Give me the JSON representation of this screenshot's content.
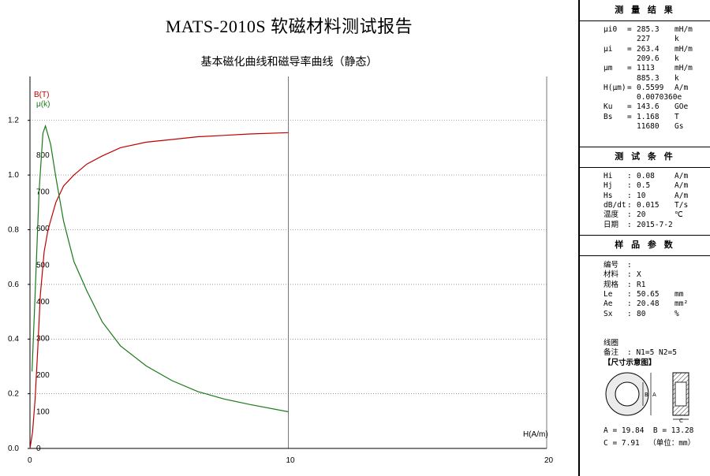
{
  "report": {
    "title": "MATS-2010S 软磁材料测试报告",
    "subtitle": "基本磁化曲线和磁导率曲线（静态）"
  },
  "chart_data": {
    "type": "line",
    "x_axis": {
      "label": "H(A/m)",
      "range": [
        0,
        20
      ],
      "ticks": [
        "0",
        "10",
        "20"
      ]
    },
    "y_axis_left": {
      "label": "B(T)",
      "range": [
        0,
        1.3
      ],
      "ticks": [
        "0.0",
        "0.2",
        "0.4",
        "0.6",
        "0.8",
        "1.0",
        "1.2"
      ]
    },
    "y_axis_right": {
      "label": "μ(k)",
      "range": [
        0,
        970
      ],
      "ticks": [
        "0",
        "100",
        "200",
        "300",
        "400",
        "500",
        "600",
        "700",
        "800"
      ]
    },
    "grid": true,
    "series": [
      {
        "name": "B(T)",
        "color": "#c00000",
        "axis": "left",
        "x": [
          0,
          0.1,
          0.2,
          0.3,
          0.4,
          0.55,
          0.7,
          1.0,
          1.3,
          1.7,
          2.2,
          2.8,
          3.5,
          4.5,
          5.5,
          6.5,
          7.5,
          8.5,
          10
        ],
        "y": [
          0.0,
          0.06,
          0.18,
          0.36,
          0.56,
          0.72,
          0.8,
          0.9,
          0.96,
          1.0,
          1.04,
          1.07,
          1.1,
          1.12,
          1.13,
          1.14,
          1.145,
          1.15,
          1.155
        ]
      },
      {
        "name": "μ(k)",
        "color": "#1a7a1a",
        "axis": "right",
        "x": [
          0.08,
          0.2,
          0.35,
          0.5,
          0.6,
          0.8,
          1.0,
          1.3,
          1.7,
          2.2,
          2.8,
          3.5,
          4.5,
          5.5,
          6.5,
          7.5,
          8.5,
          10
        ],
        "y": [
          210,
          420,
          700,
          860,
          880,
          830,
          740,
          620,
          510,
          430,
          345,
          280,
          225,
          185,
          155,
          135,
          120,
          100
        ]
      }
    ]
  },
  "panel": {
    "results": {
      "header": "测 量 结 果",
      "rows": [
        {
          "name": "μi0",
          "eq": "=",
          "value": "285.3",
          "unit": "mH/m"
        },
        {
          "name": "",
          "eq": "",
          "value": "227",
          "unit": "k"
        },
        {
          "name": "μi",
          "eq": "=",
          "value": "263.4",
          "unit": "mH/m"
        },
        {
          "name": "",
          "eq": "",
          "value": "209.6",
          "unit": "k"
        },
        {
          "name": "μm",
          "eq": "=",
          "value": "1113",
          "unit": "mH/m"
        },
        {
          "name": "",
          "eq": "",
          "value": "885.3",
          "unit": "k"
        },
        {
          "name": "H(μm)",
          "eq": "=",
          "value": "0.5599",
          "unit": "A/m"
        },
        {
          "name": "",
          "eq": "",
          "value": "0.0070360e",
          "unit": ""
        },
        {
          "name": "Ku",
          "eq": "=",
          "value": "143.6",
          "unit": "GOe"
        },
        {
          "name": "Bs",
          "eq": "=",
          "value": "1.168",
          "unit": "T"
        },
        {
          "name": "",
          "eq": "",
          "value": "11680",
          "unit": "Gs"
        }
      ]
    },
    "conditions": {
      "header": "测 试 条 件",
      "rows": [
        {
          "name": "Hi",
          "eq": ":",
          "value": "0.08",
          "unit": "A/m"
        },
        {
          "name": "Hj",
          "eq": ":",
          "value": "0.5",
          "unit": "A/m"
        },
        {
          "name": "Hs",
          "eq": ":",
          "value": "10",
          "unit": "A/m"
        },
        {
          "name": "dB/dt",
          "eq": ":",
          "value": "0.015",
          "unit": "T/s"
        },
        {
          "name": "温度",
          "eq": ":",
          "value": "20",
          "unit": "℃"
        },
        {
          "name": "日期",
          "eq": ":",
          "value": "2015-7-2",
          "unit": ""
        }
      ]
    },
    "sample": {
      "header": "样 品 参 数",
      "rows": [
        {
          "name": "编号",
          "eq": ":",
          "value": "",
          "unit": ""
        },
        {
          "name": "材料",
          "eq": ":",
          "value": "X",
          "unit": ""
        },
        {
          "name": "规格",
          "eq": ":",
          "value": "R1",
          "unit": ""
        },
        {
          "name": "Le",
          "eq": ":",
          "value": "50.65",
          "unit": "mm"
        },
        {
          "name": "Ae",
          "eq": ":",
          "value": "20.48",
          "unit": "mm²"
        },
        {
          "name": "Sx",
          "eq": ":",
          "value": "80",
          "unit": "%"
        }
      ],
      "coil_label": "线圈",
      "coil_value": ": N1=5 N2=5",
      "remark_label": "备注",
      "remark_value": ":",
      "diagram_title": "【尺寸示意图】",
      "diagram_b": "B",
      "diagram_a": "A",
      "diagram_c": "C",
      "dim_line1": "A = 19.84  B = 13.28",
      "dim_line2": "C = 7.91  （单位：mm）"
    }
  }
}
